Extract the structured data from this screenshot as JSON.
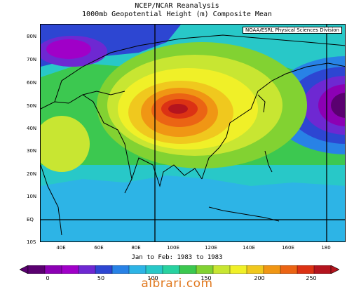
{
  "title_line1": "NCEP/NCAR Reanalysis",
  "title_line2": "1000mb Geopotential Height (m) Composite Mean",
  "credit": "NOAA/ESRL Physical Sciences Division",
  "period": "Jan to Feb: 1983 to 1983",
  "watermark": "albrari.com",
  "lat_labels": [
    "80N",
    "70N",
    "60N",
    "50N",
    "40N",
    "30N",
    "20N",
    "10N",
    "EQ",
    "10S"
  ],
  "lon_labels": [
    "40E",
    "60E",
    "80E",
    "100E",
    "120E",
    "140E",
    "160E",
    "180"
  ],
  "colorbar": {
    "tick_labels": [
      "0",
      "50",
      "100",
      "150",
      "200",
      "250"
    ],
    "colors": [
      "#5a0070",
      "#8c00b4",
      "#a000c8",
      "#6e28d2",
      "#2d46d2",
      "#2882e6",
      "#2db4e6",
      "#28c8c8",
      "#28d2a0",
      "#3cc850",
      "#82d232",
      "#c8e632",
      "#f0f028",
      "#f0c81e",
      "#f09614",
      "#eb6414",
      "#dc3214",
      "#b4141e"
    ]
  }
}
